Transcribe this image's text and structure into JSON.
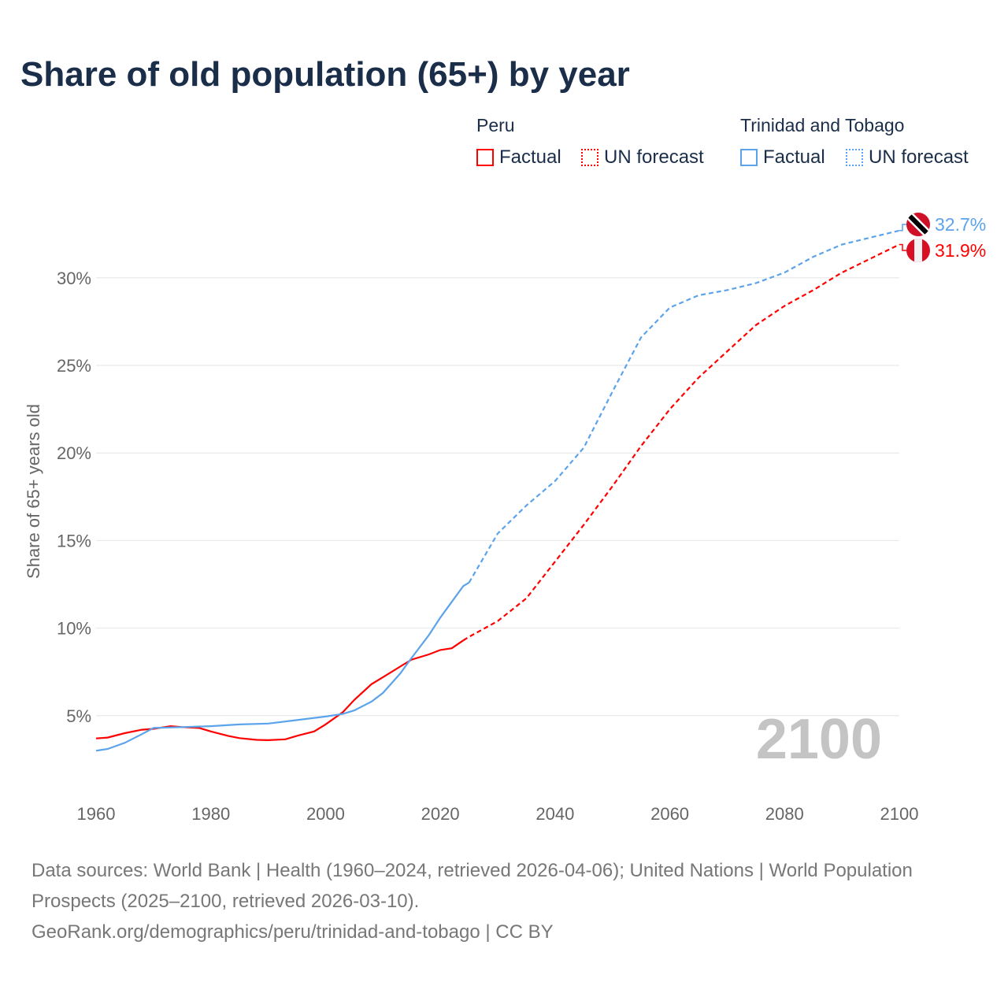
{
  "title": "Share of old population (65+) by year",
  "legend": {
    "groups": [
      {
        "name": "Peru",
        "color": "#ff0000",
        "items": [
          "Factual",
          "UN forecast"
        ]
      },
      {
        "name": "Trinidad and Tobago",
        "color": "#5ba3ea",
        "items": [
          "Factual",
          "UN forecast"
        ]
      }
    ]
  },
  "source": {
    "line1": "Data sources: World Bank | Health (1960–2024, retrieved 2026-04-06); United Nations | World Population Prospects (2025–2100, retrieved 2026-03-10).",
    "line2": "GeoRank.org/demographics/peru/trinidad-and-tobago | CC BY"
  },
  "chart_data": {
    "type": "line",
    "title": "Share of old population (65+) by year",
    "ylabel": "Share of 65+ years old",
    "xlabel": "",
    "xlim": [
      1960,
      2100
    ],
    "ylim": [
      0,
      32.7
    ],
    "xticks": [
      "1960",
      "1980",
      "2000",
      "2020",
      "2040",
      "2060",
      "2080",
      "2100"
    ],
    "yticks": [
      "5%",
      "10%",
      "15%",
      "20%",
      "25%",
      "30%"
    ],
    "watermark_year": "2100",
    "series": [
      {
        "name": "Peru",
        "color": "#ff0000",
        "end_label": "31.9%",
        "factual": {
          "x": [
            1960,
            1962,
            1965,
            1968,
            1970,
            1973,
            1975,
            1978,
            1980,
            1983,
            1985,
            1988,
            1990,
            1993,
            1995,
            1998,
            2000,
            2003,
            2005,
            2008,
            2010,
            2013,
            2015,
            2018,
            2020,
            2022,
            2024
          ],
          "y": [
            3.7,
            3.75,
            4.0,
            4.2,
            4.25,
            4.4,
            4.35,
            4.3,
            4.1,
            3.85,
            3.72,
            3.62,
            3.6,
            3.65,
            3.85,
            4.1,
            4.5,
            5.2,
            5.9,
            6.8,
            7.2,
            7.8,
            8.2,
            8.5,
            8.75,
            8.85,
            9.3
          ]
        },
        "forecast": {
          "x": [
            2024,
            2025,
            2030,
            2035,
            2040,
            2045,
            2050,
            2055,
            2060,
            2065,
            2070,
            2075,
            2080,
            2085,
            2090,
            2095,
            2100
          ],
          "y": [
            9.3,
            9.5,
            10.4,
            11.7,
            13.8,
            15.9,
            18.1,
            20.4,
            22.5,
            24.3,
            25.8,
            27.3,
            28.4,
            29.3,
            30.3,
            31.1,
            31.9
          ]
        }
      },
      {
        "name": "Trinidad and Tobago",
        "color": "#5ba3ea",
        "end_label": "32.7%",
        "factual": {
          "x": [
            1960,
            1962,
            1965,
            1968,
            1970,
            1975,
            1980,
            1985,
            1990,
            1995,
            2000,
            2003,
            2005,
            2008,
            2010,
            2013,
            2015,
            2018,
            2020,
            2022,
            2024,
            2025
          ],
          "y": [
            3.0,
            3.1,
            3.45,
            3.95,
            4.3,
            4.35,
            4.4,
            4.5,
            4.55,
            4.75,
            4.95,
            5.1,
            5.3,
            5.8,
            6.3,
            7.4,
            8.3,
            9.6,
            10.6,
            11.5,
            12.4,
            12.6
          ]
        },
        "forecast": {
          "x": [
            2025,
            2030,
            2035,
            2040,
            2045,
            2050,
            2055,
            2060,
            2065,
            2070,
            2075,
            2080,
            2085,
            2090,
            2095,
            2100
          ],
          "y": [
            12.6,
            15.4,
            17.0,
            18.4,
            20.3,
            23.5,
            26.6,
            28.3,
            29.0,
            29.3,
            29.7,
            30.3,
            31.2,
            31.9,
            32.3,
            32.7
          ]
        }
      }
    ]
  }
}
